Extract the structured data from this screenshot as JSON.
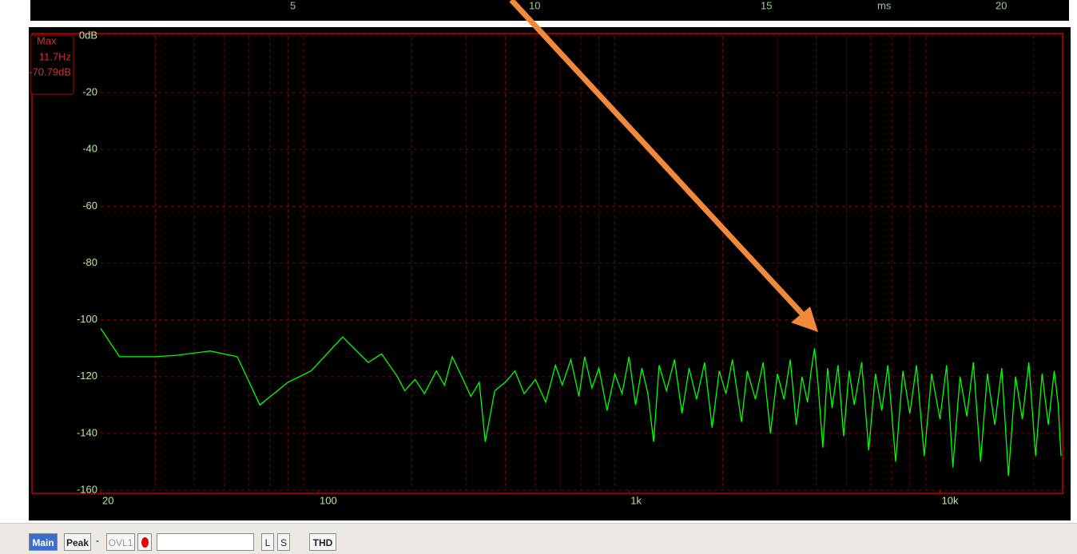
{
  "time_axis": {
    "labels": [
      "5",
      "10",
      "15",
      "ms",
      "20"
    ]
  },
  "readout": {
    "title": "Max",
    "frequency": "11.7Hz",
    "level": "-70.79dB"
  },
  "chart_data": {
    "type": "line",
    "xscale": "log",
    "grid": true,
    "color": "#00ff00",
    "xlim": [
      20,
      24500
    ],
    "ylim": [
      -160,
      0
    ],
    "xticks": [
      20,
      100,
      {
        "value": 1000,
        "label": "1k"
      },
      {
        "value": 10000,
        "label": "10k"
      }
    ],
    "xgrid": [
      30,
      40,
      50,
      60,
      70,
      80,
      90,
      200,
      300,
      400,
      500,
      600,
      700,
      800,
      900,
      2000,
      3000,
      4000,
      5000,
      6000,
      7000,
      8000,
      9000,
      20000
    ],
    "yticks": [
      {
        "value": 0,
        "label": "0dB"
      },
      -20,
      -40,
      -60,
      -80,
      -100,
      -120,
      -140,
      -160
    ],
    "x": [
      20,
      23,
      30,
      35,
      45,
      55,
      65,
      80,
      95,
      120,
      145,
      160,
      180,
      190,
      205,
      220,
      240,
      255,
      270,
      290,
      310,
      330,
      345,
      370,
      400,
      430,
      460,
      500,
      540,
      580,
      610,
      650,
      690,
      720,
      760,
      800,
      850,
      900,
      950,
      1000,
      1050,
      1100,
      1150,
      1200,
      1250,
      1320,
      1400,
      1480,
      1560,
      1650,
      1750,
      1850,
      1950,
      2050,
      2150,
      2300,
      2400,
      2550,
      2700,
      2850,
      3000,
      3150,
      3300,
      3450,
      3600,
      3750,
      3850,
      3950,
      4050,
      4200,
      4350,
      4500,
      4700,
      4900,
      5100,
      5300,
      5600,
      5900,
      6200,
      6500,
      6800,
      7200,
      7600,
      8000,
      8400,
      8900,
      9400,
      10000,
      10500,
      11000,
      11600,
      12200,
      12800,
      13500,
      14200,
      15000,
      15800,
      16600,
      17500,
      18400,
      19300,
      20300,
      21300,
      22300,
      23300,
      24000,
      24500
    ],
    "values": [
      -103,
      -113,
      -113,
      -112.5,
      -111,
      -113,
      -130,
      -122,
      -118,
      -106,
      -115,
      -112,
      -120,
      -125,
      -121,
      -126,
      -118,
      -123,
      -113,
      -120,
      -127,
      -122,
      -143,
      -125,
      -122,
      -118,
      -126,
      -121,
      -129,
      -116,
      -123,
      -114,
      -127,
      -113,
      -124,
      -117,
      -132,
      -119,
      -126,
      -113,
      -130,
      -117,
      -126,
      -143,
      -116,
      -125,
      -114,
      -133,
      -117,
      -128,
      -115,
      -138,
      -118,
      -126,
      -114,
      -136,
      -118,
      -128,
      -115,
      -140,
      -119,
      -128,
      -114,
      -137,
      -120,
      -129,
      -118,
      -110,
      -122,
      -145,
      -117,
      -131,
      -116,
      -141,
      -118,
      -130,
      -115,
      -146,
      -119,
      -132,
      -116,
      -150,
      -118,
      -133,
      -116,
      -148,
      -119,
      -135,
      -116,
      -152,
      -120,
      -134,
      -115,
      -150,
      -119,
      -137,
      -117,
      -155,
      -120,
      -135,
      -115,
      -148,
      -119,
      -137,
      -118,
      -130,
      -148
    ]
  },
  "toolbar": {
    "main": "Main",
    "peak": "Peak",
    "separator": "-",
    "ovl": "OVL1",
    "left": "L",
    "sample": "S",
    "thd": "THD"
  }
}
